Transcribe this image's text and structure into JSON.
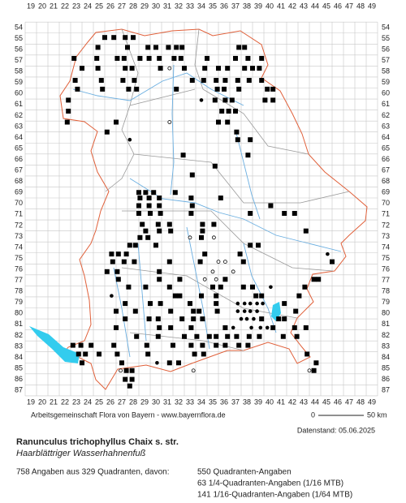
{
  "map": {
    "columns": [
      19,
      20,
      21,
      22,
      23,
      24,
      25,
      26,
      27,
      28,
      29,
      30,
      31,
      32,
      33,
      34,
      35,
      36,
      37,
      38,
      39,
      40,
      41,
      42,
      43,
      44,
      45,
      46,
      47,
      48,
      49
    ],
    "rows": [
      54,
      55,
      56,
      57,
      58,
      59,
      60,
      61,
      62,
      63,
      64,
      65,
      66,
      67,
      68,
      69,
      70,
      71,
      72,
      73,
      74,
      75,
      76,
      77,
      78,
      79,
      80,
      81,
      82,
      83,
      84,
      85,
      86,
      87
    ],
    "markers": [
      [
        25.5,
        54.9,
        "s"
      ],
      [
        26.3,
        54.9,
        "s"
      ],
      [
        27.3,
        54.9,
        "s"
      ],
      [
        28,
        54.9,
        "s"
      ],
      [
        24.9,
        55.8,
        "s"
      ],
      [
        27.5,
        55.8,
        "s"
      ],
      [
        29.3,
        55.8,
        "s"
      ],
      [
        30,
        55.8,
        "s"
      ],
      [
        31.1,
        55.8,
        "s"
      ],
      [
        31.8,
        55.8,
        "s"
      ],
      [
        32.3,
        55.8,
        "s"
      ],
      [
        37.3,
        55.8,
        "s"
      ],
      [
        37.8,
        55.8,
        "s"
      ],
      [
        22.8,
        56.8,
        "s"
      ],
      [
        24.8,
        56.8,
        "s"
      ],
      [
        26.6,
        56.8,
        "s"
      ],
      [
        27.2,
        56.8,
        "s"
      ],
      [
        28.6,
        56.8,
        "s"
      ],
      [
        29.4,
        56.8,
        "s"
      ],
      [
        30.3,
        56.8,
        "s"
      ],
      [
        31.6,
        56.8,
        "s"
      ],
      [
        32.2,
        56.8,
        "s"
      ],
      [
        34.5,
        56.8,
        "s"
      ],
      [
        37,
        56.8,
        "s"
      ],
      [
        38.1,
        56.8,
        "s"
      ],
      [
        39.3,
        56.8,
        "s"
      ],
      [
        23.5,
        57.7,
        "s"
      ],
      [
        24.9,
        57.7,
        "s"
      ],
      [
        27.3,
        57.7,
        "s"
      ],
      [
        27.9,
        57.7,
        "s"
      ],
      [
        30.4,
        57.7,
        "s"
      ],
      [
        31.2,
        57.7,
        "c"
      ],
      [
        32.5,
        57.7,
        "s"
      ],
      [
        34.3,
        57.7,
        "s"
      ],
      [
        35.5,
        57.7,
        "s"
      ],
      [
        36.3,
        57.7,
        "s"
      ],
      [
        37.8,
        57.7,
        "s"
      ],
      [
        38.5,
        57.7,
        "s"
      ],
      [
        39.1,
        57.7,
        "s"
      ],
      [
        22.9,
        58.8,
        "s"
      ],
      [
        25.2,
        58.8,
        "s"
      ],
      [
        27.1,
        58.8,
        "s"
      ],
      [
        28.1,
        58.8,
        "s"
      ],
      [
        33.2,
        58.8,
        "s"
      ],
      [
        34.2,
        58.8,
        "s"
      ],
      [
        35.3,
        58.8,
        "s"
      ],
      [
        36.1,
        58.8,
        "s"
      ],
      [
        37.2,
        58.8,
        "s"
      ],
      [
        38.2,
        58.8,
        "s"
      ],
      [
        39.3,
        58.8,
        "s"
      ],
      [
        23.1,
        59.6,
        "s"
      ],
      [
        25.3,
        59.6,
        "s"
      ],
      [
        27.6,
        59.6,
        "s"
      ],
      [
        28.3,
        59.6,
        "s"
      ],
      [
        31.8,
        59.6,
        "s"
      ],
      [
        35.4,
        59.6,
        "s"
      ],
      [
        36,
        59.6,
        "s"
      ],
      [
        37.3,
        59.6,
        "s"
      ],
      [
        39.8,
        59.6,
        "s"
      ],
      [
        40.3,
        59.6,
        "s"
      ],
      [
        22.3,
        60.6,
        "s"
      ],
      [
        34,
        60.6,
        "d"
      ],
      [
        35.2,
        60.6,
        "s"
      ],
      [
        36.1,
        60.6,
        "s"
      ],
      [
        36.7,
        60.6,
        "s"
      ],
      [
        39.6,
        60.6,
        "s"
      ],
      [
        40.3,
        60.6,
        "s"
      ],
      [
        22.3,
        61.6,
        "s"
      ],
      [
        35.8,
        61.6,
        "s"
      ],
      [
        36.4,
        61.6,
        "s"
      ],
      [
        37,
        61.6,
        "s"
      ],
      [
        22.2,
        62.6,
        "s"
      ],
      [
        26.5,
        62.6,
        "s"
      ],
      [
        31.2,
        62.6,
        "c"
      ],
      [
        35.5,
        62.6,
        "s"
      ],
      [
        36.3,
        62.6,
        "s"
      ],
      [
        25.7,
        63.5,
        "s"
      ],
      [
        37.1,
        63.5,
        "s"
      ],
      [
        27.7,
        64.2,
        "d"
      ],
      [
        37.2,
        64.2,
        "s"
      ],
      [
        38.3,
        64.2,
        "s"
      ],
      [
        32.4,
        65.6,
        "s"
      ],
      [
        38.1,
        65.6,
        "s"
      ],
      [
        35.2,
        66.6,
        "s"
      ],
      [
        33.2,
        67.4,
        "s"
      ],
      [
        28.5,
        69,
        "s"
      ],
      [
        29.1,
        69,
        "s"
      ],
      [
        29.8,
        69,
        "s"
      ],
      [
        31.7,
        69,
        "s"
      ],
      [
        28.6,
        69.5,
        "s"
      ],
      [
        29.4,
        69.5,
        "s"
      ],
      [
        30.3,
        69.5,
        "s"
      ],
      [
        33.1,
        69.5,
        "s"
      ],
      [
        35.7,
        69.5,
        "s"
      ],
      [
        28.5,
        70.2,
        "s"
      ],
      [
        29.4,
        70.2,
        "s"
      ],
      [
        30.3,
        70.2,
        "s"
      ],
      [
        33.2,
        70.2,
        "s"
      ],
      [
        40.1,
        70.2,
        "s"
      ],
      [
        28.5,
        70.9,
        "s"
      ],
      [
        29.5,
        70.9,
        "s"
      ],
      [
        30.4,
        70.9,
        "s"
      ],
      [
        33.1,
        70.9,
        "s"
      ],
      [
        38.3,
        70.9,
        "s"
      ],
      [
        41.3,
        70.9,
        "s"
      ],
      [
        42.2,
        70.9,
        "s"
      ],
      [
        28.8,
        71.9,
        "s"
      ],
      [
        30.2,
        71.9,
        "s"
      ],
      [
        31.2,
        71.9,
        "s"
      ],
      [
        34.1,
        71.9,
        "s"
      ],
      [
        35.1,
        71.9,
        "s"
      ],
      [
        29.1,
        72.5,
        "s"
      ],
      [
        30.3,
        72.5,
        "s"
      ],
      [
        31.3,
        72.5,
        "s"
      ],
      [
        34.1,
        72.5,
        "s"
      ],
      [
        43.2,
        72.5,
        "s"
      ],
      [
        28.6,
        73.1,
        "s"
      ],
      [
        29.3,
        73.1,
        "s"
      ],
      [
        34,
        73.1,
        "s"
      ],
      [
        33,
        73.1,
        "c"
      ],
      [
        35.1,
        73.1,
        "c"
      ],
      [
        27.7,
        73.8,
        "s"
      ],
      [
        28.2,
        73.8,
        "s"
      ],
      [
        30,
        73.8,
        "s"
      ],
      [
        38.3,
        73.8,
        "s"
      ],
      [
        39,
        73.8,
        "s"
      ],
      [
        26.1,
        74.6,
        "s"
      ],
      [
        26.7,
        74.6,
        "s"
      ],
      [
        27.4,
        74.6,
        "s"
      ],
      [
        34.3,
        74.6,
        "s"
      ],
      [
        37.4,
        74.6,
        "s"
      ],
      [
        45.1,
        74.6,
        "d"
      ],
      [
        26.2,
        75.3,
        "s"
      ],
      [
        27.2,
        75.3,
        "s"
      ],
      [
        28.1,
        75.3,
        "s"
      ],
      [
        31.2,
        75.3,
        "s"
      ],
      [
        33.9,
        75.3,
        "s"
      ],
      [
        35.5,
        75.3,
        "c"
      ],
      [
        36.1,
        75.3,
        "c"
      ],
      [
        37.7,
        75.3,
        "s"
      ],
      [
        45.5,
        75.3,
        "s"
      ],
      [
        25.7,
        76.2,
        "s"
      ],
      [
        26.6,
        76.2,
        "s"
      ],
      [
        30.3,
        76.2,
        "s"
      ],
      [
        35,
        76.2,
        "c"
      ],
      [
        36.8,
        76.2,
        "c"
      ],
      [
        26.7,
        76.9,
        "s"
      ],
      [
        30.3,
        76.9,
        "s"
      ],
      [
        32.1,
        76.9,
        "s"
      ],
      [
        34.3,
        76.9,
        "c"
      ],
      [
        35.3,
        76.9,
        "c"
      ],
      [
        36.1,
        76.9,
        "s"
      ],
      [
        43.9,
        76.9,
        "s"
      ],
      [
        44.3,
        76.9,
        "s"
      ],
      [
        27.6,
        77.6,
        "s"
      ],
      [
        29.1,
        77.6,
        "s"
      ],
      [
        31.2,
        77.6,
        "s"
      ],
      [
        35,
        77.6,
        "s"
      ],
      [
        35.7,
        77.6,
        "s"
      ],
      [
        37.7,
        77.6,
        "s"
      ],
      [
        38.5,
        77.6,
        "s"
      ],
      [
        40.1,
        77.6,
        "d"
      ],
      [
        43.1,
        77.6,
        "s"
      ],
      [
        26.1,
        78.4,
        "d"
      ],
      [
        31.7,
        78.4,
        "s"
      ],
      [
        32.1,
        78.4,
        "s"
      ],
      [
        34,
        78.4,
        "s"
      ],
      [
        35.3,
        78.4,
        "s"
      ],
      [
        38.8,
        78.4,
        "s"
      ],
      [
        39.3,
        78.4,
        "s"
      ],
      [
        42.6,
        78.4,
        "s"
      ],
      [
        27.3,
        79.1,
        "s"
      ],
      [
        29.5,
        79.1,
        "s"
      ],
      [
        30.4,
        79.1,
        "s"
      ],
      [
        33,
        79.1,
        "s"
      ],
      [
        35.3,
        79.1,
        "s"
      ],
      [
        37.2,
        79.1,
        "d"
      ],
      [
        37.8,
        79.1,
        "d"
      ],
      [
        38.3,
        79.1,
        "d"
      ],
      [
        38.9,
        79.1,
        "d"
      ],
      [
        39.4,
        79.1,
        "d"
      ],
      [
        41.3,
        79.1,
        "s"
      ],
      [
        26.5,
        79.8,
        "s"
      ],
      [
        28.2,
        79.8,
        "s"
      ],
      [
        31.3,
        79.8,
        "s"
      ],
      [
        33.3,
        79.8,
        "s"
      ],
      [
        33.8,
        79.8,
        "s"
      ],
      [
        35.4,
        79.8,
        "s"
      ],
      [
        37.2,
        79.8,
        "d"
      ],
      [
        37.8,
        79.8,
        "d"
      ],
      [
        38.3,
        79.8,
        "d"
      ],
      [
        38.9,
        79.8,
        "d"
      ],
      [
        42.3,
        79.8,
        "s"
      ],
      [
        27.3,
        80.5,
        "s"
      ],
      [
        29.4,
        80.5,
        "s"
      ],
      [
        30.2,
        80.5,
        "s"
      ],
      [
        32.3,
        80.5,
        "s"
      ],
      [
        33.3,
        80.5,
        "s"
      ],
      [
        34.1,
        80.5,
        "s"
      ],
      [
        37.5,
        80.5,
        "d"
      ],
      [
        38,
        80.5,
        "d"
      ],
      [
        38.6,
        80.5,
        "d"
      ],
      [
        39.3,
        80.5,
        "s"
      ],
      [
        40.8,
        80.5,
        "s"
      ],
      [
        41.3,
        80.5,
        "s"
      ],
      [
        26.5,
        81.3,
        "s"
      ],
      [
        30.3,
        81.3,
        "s"
      ],
      [
        31.3,
        81.3,
        "s"
      ],
      [
        33.1,
        81.3,
        "s"
      ],
      [
        36.1,
        81.3,
        "s"
      ],
      [
        36.8,
        81.3,
        "d"
      ],
      [
        38.4,
        81.3,
        "d"
      ],
      [
        39.2,
        81.3,
        "d"
      ],
      [
        39.8,
        81.3,
        "d"
      ],
      [
        40.3,
        81.3,
        "s"
      ],
      [
        42.2,
        81.3,
        "s"
      ],
      [
        43.2,
        81.3,
        "s"
      ],
      [
        28.3,
        82.1,
        "s"
      ],
      [
        30.2,
        82.1,
        "s"
      ],
      [
        32.5,
        82.1,
        "s"
      ],
      [
        33.6,
        82.1,
        "s"
      ],
      [
        34.7,
        82.1,
        "s"
      ],
      [
        35.3,
        82.1,
        "s"
      ],
      [
        36.3,
        82.1,
        "s"
      ],
      [
        37.1,
        82.1,
        "s"
      ],
      [
        38.2,
        82.1,
        "s"
      ],
      [
        39.1,
        82.1,
        "s"
      ],
      [
        41.2,
        82.1,
        "s"
      ],
      [
        42.4,
        82.1,
        "s"
      ],
      [
        22.7,
        82.9,
        "s"
      ],
      [
        23.4,
        82.9,
        "s"
      ],
      [
        24.3,
        82.9,
        "s"
      ],
      [
        26.3,
        82.9,
        "s"
      ],
      [
        29.2,
        82.9,
        "s"
      ],
      [
        31.5,
        82.9,
        "s"
      ],
      [
        33.1,
        82.9,
        "s"
      ],
      [
        34.1,
        82.9,
        "s"
      ],
      [
        35.3,
        82.9,
        "s"
      ],
      [
        36.1,
        82.9,
        "s"
      ],
      [
        37.3,
        82.9,
        "s"
      ],
      [
        38.1,
        82.9,
        "s"
      ],
      [
        23.2,
        83.7,
        "s"
      ],
      [
        23.8,
        83.7,
        "s"
      ],
      [
        25,
        83.7,
        "s"
      ],
      [
        26.6,
        83.7,
        "s"
      ],
      [
        29.3,
        83.7,
        "s"
      ],
      [
        33.4,
        83.7,
        "s"
      ],
      [
        34.2,
        83.7,
        "s"
      ],
      [
        43.3,
        83.7,
        "s"
      ],
      [
        23.5,
        84.5,
        "s"
      ],
      [
        27,
        84.5,
        "s"
      ],
      [
        30.1,
        84.5,
        "d"
      ],
      [
        31.2,
        84.5,
        "s"
      ],
      [
        32,
        84.5,
        "s"
      ],
      [
        44.1,
        84.5,
        "s"
      ],
      [
        26.9,
        85.2,
        "c"
      ],
      [
        27.4,
        85.2,
        "s"
      ],
      [
        27.9,
        85.2,
        "s"
      ],
      [
        33.3,
        85.2,
        "c"
      ],
      [
        43.5,
        85.2,
        "c"
      ],
      [
        43.9,
        85.2,
        "s"
      ],
      [
        27.3,
        86,
        "s"
      ],
      [
        27.9,
        86,
        "s"
      ],
      [
        27.7,
        86.6,
        "s"
      ]
    ],
    "credit": "Arbeitsgemeinschaft Flora von Bayern - www.bayernflora.de",
    "scale_start": "0",
    "scale_end": "50 km",
    "date": "Datenstand: 05.06.2025"
  },
  "species": {
    "scientific": "Ranunculus trichophyllus Chaix s. str.",
    "common": "Haarblättriger Wasserhahnenfuß"
  },
  "stats": {
    "summary": "758 Angaben aus 329 Quadranten, davon:",
    "lines": [
      "550 Quadranten-Angaben",
      "63 1/4-Quadranten-Angaben (1/16 MTB)",
      "141 1/16-Quadranten-Angaben (1/64 MTB)"
    ]
  }
}
